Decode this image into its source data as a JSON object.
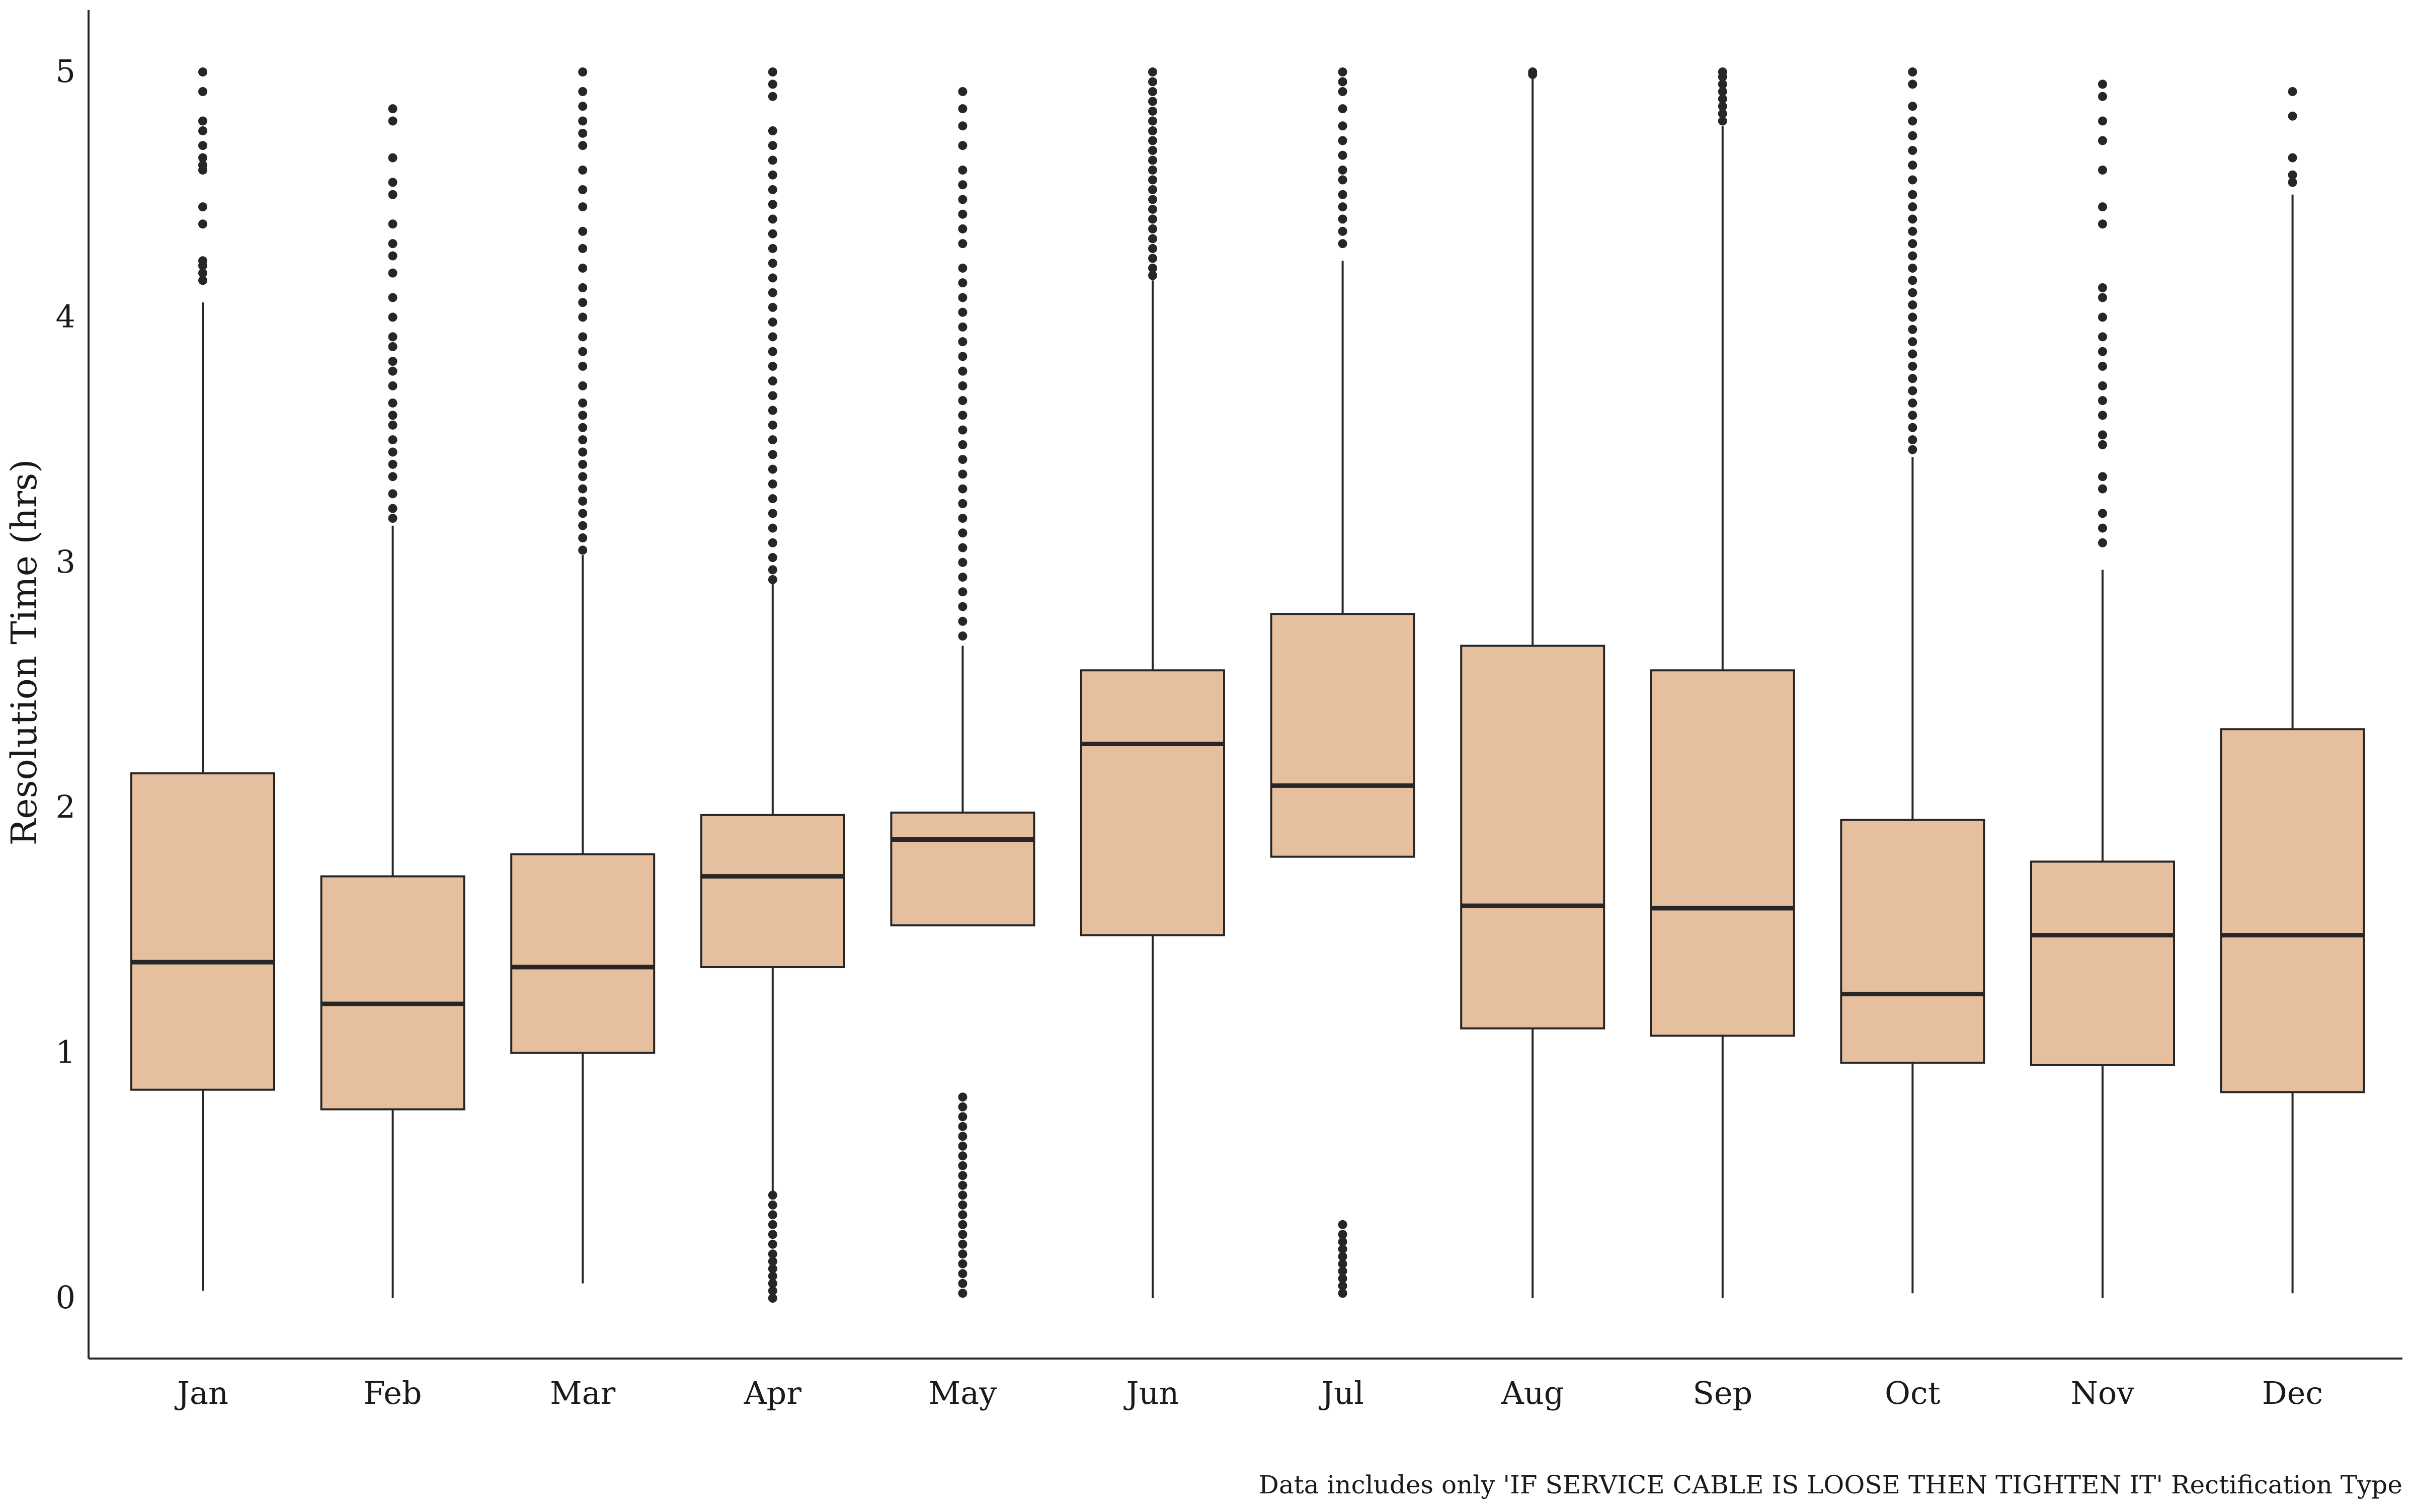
{
  "chart_data": {
    "type": "box",
    "ylabel": "Resolution Time (hrs)",
    "xlabel": "",
    "ylim": [
      -0.25,
      5.25
    ],
    "yticks": [
      0,
      1,
      2,
      3,
      4,
      5
    ],
    "categories": [
      "Jan",
      "Feb",
      "Mar",
      "Apr",
      "May",
      "Jun",
      "Jul",
      "Aug",
      "Sep",
      "Oct",
      "Nov",
      "Dec"
    ],
    "grid": false,
    "box_color": "#E6BF9E",
    "line_color": "#262626",
    "caption": "Data includes only 'IF SERVICE CABLE IS LOOSE THEN TIGHTEN IT' Rectification Type",
    "boxes": [
      {
        "category": "Jan",
        "whisker_low": 0.03,
        "q1": 0.85,
        "median": 1.37,
        "q3": 2.14,
        "whisker_high": 4.06,
        "outliers": [
          4.15,
          4.18,
          4.21,
          4.23,
          4.38,
          4.45,
          4.6,
          4.62,
          4.65,
          4.7,
          4.76,
          4.8,
          4.92,
          5.0
        ]
      },
      {
        "category": "Feb",
        "whisker_low": 0.0,
        "q1": 0.77,
        "median": 1.2,
        "q3": 1.72,
        "whisker_high": 3.15,
        "outliers": [
          3.18,
          3.22,
          3.28,
          3.35,
          3.4,
          3.45,
          3.5,
          3.56,
          3.6,
          3.65,
          3.72,
          3.78,
          3.82,
          3.88,
          3.92,
          4.0,
          4.08,
          4.18,
          4.25,
          4.3,
          4.38,
          4.5,
          4.55,
          4.65,
          4.8,
          4.85
        ]
      },
      {
        "category": "Mar",
        "whisker_low": 0.06,
        "q1": 1.0,
        "median": 1.35,
        "q3": 1.81,
        "whisker_high": 3.03,
        "outliers": [
          3.05,
          3.1,
          3.15,
          3.2,
          3.25,
          3.3,
          3.35,
          3.4,
          3.45,
          3.5,
          3.55,
          3.6,
          3.65,
          3.72,
          3.8,
          3.86,
          3.92,
          4.0,
          4.06,
          4.12,
          4.2,
          4.28,
          4.35,
          4.45,
          4.52,
          4.6,
          4.7,
          4.75,
          4.8,
          4.86,
          4.92,
          5.0
        ]
      },
      {
        "category": "Apr",
        "whisker_low": 1.35,
        "q1": 1.35,
        "median": 1.72,
        "q3": 1.97,
        "whisker_high": 2.92,
        "whisker_low_value": 0.42,
        "outliers_low": [
          0.0,
          0.03,
          0.06,
          0.09,
          0.12,
          0.15,
          0.18,
          0.22,
          0.26,
          0.3,
          0.34,
          0.38,
          0.42
        ],
        "outliers": [
          2.93,
          2.97,
          3.02,
          3.08,
          3.14,
          3.2,
          3.26,
          3.32,
          3.38,
          3.44,
          3.5,
          3.56,
          3.62,
          3.68,
          3.74,
          3.8,
          3.86,
          3.92,
          3.98,
          4.04,
          4.1,
          4.16,
          4.22,
          4.28,
          4.34,
          4.4,
          4.46,
          4.52,
          4.58,
          4.64,
          4.7,
          4.76,
          4.9,
          4.95,
          5.0
        ]
      },
      {
        "category": "May",
        "whisker_low": 1.52,
        "q1": 1.52,
        "median": 1.87,
        "q3": 1.98,
        "whisker_high": 2.66,
        "outliers_low": [
          0.02,
          0.06,
          0.1,
          0.14,
          0.18,
          0.22,
          0.26,
          0.3,
          0.34,
          0.38,
          0.42,
          0.46,
          0.5,
          0.54,
          0.58,
          0.62,
          0.66,
          0.7,
          0.74,
          0.78,
          0.82
        ],
        "outliers": [
          2.7,
          2.76,
          2.82,
          2.88,
          2.94,
          3.0,
          3.06,
          3.12,
          3.18,
          3.24,
          3.3,
          3.36,
          3.42,
          3.48,
          3.54,
          3.6,
          3.66,
          3.72,
          3.78,
          3.84,
          3.9,
          3.96,
          4.02,
          4.08,
          4.14,
          4.2,
          4.3,
          4.36,
          4.42,
          4.48,
          4.54,
          4.6,
          4.7,
          4.78,
          4.85,
          4.92
        ]
      },
      {
        "category": "Jun",
        "whisker_low": 0.0,
        "q1": 1.48,
        "median": 2.26,
        "q3": 2.56,
        "whisker_high": 4.15,
        "outliers": [
          4.17,
          4.2,
          4.24,
          4.28,
          4.32,
          4.36,
          4.4,
          4.44,
          4.48,
          4.52,
          4.56,
          4.6,
          4.64,
          4.68,
          4.72,
          4.76,
          4.8,
          4.84,
          4.88,
          4.92,
          4.96,
          5.0
        ]
      },
      {
        "category": "Jul",
        "whisker_low": 1.8,
        "q1": 1.8,
        "median": 2.09,
        "q3": 2.79,
        "whisker_high": 4.23,
        "outliers_low": [
          0.02,
          0.05,
          0.08,
          0.11,
          0.14,
          0.17,
          0.2,
          0.23,
          0.26,
          0.3
        ],
        "outliers": [
          4.3,
          4.35,
          4.4,
          4.45,
          4.5,
          4.56,
          4.6,
          4.66,
          4.72,
          4.78,
          4.85,
          4.92,
          4.96,
          5.0
        ]
      },
      {
        "category": "Aug",
        "whisker_low": 0.0,
        "q1": 1.1,
        "median": 1.6,
        "q3": 2.66,
        "whisker_high": 4.98,
        "outliers": [
          4.99,
          5.0
        ]
      },
      {
        "category": "Sep",
        "whisker_low": 0.0,
        "q1": 1.07,
        "median": 1.59,
        "q3": 2.56,
        "whisker_high": 4.78,
        "outliers": [
          4.8,
          4.83,
          4.86,
          4.89,
          4.92,
          4.95,
          4.98,
          5.0
        ]
      },
      {
        "category": "Oct",
        "whisker_low": 0.02,
        "q1": 0.96,
        "median": 1.24,
        "q3": 1.95,
        "whisker_high": 3.43,
        "outliers": [
          3.46,
          3.5,
          3.55,
          3.6,
          3.65,
          3.7,
          3.75,
          3.8,
          3.85,
          3.9,
          3.95,
          4.0,
          4.05,
          4.1,
          4.15,
          4.2,
          4.25,
          4.3,
          4.35,
          4.4,
          4.45,
          4.5,
          4.56,
          4.62,
          4.68,
          4.74,
          4.8,
          4.86,
          4.95,
          5.0
        ]
      },
      {
        "category": "Nov",
        "whisker_low": 0.0,
        "q1": 0.95,
        "median": 1.48,
        "q3": 1.78,
        "whisker_high": 2.97,
        "outliers": [
          3.08,
          3.14,
          3.2,
          3.3,
          3.35,
          3.48,
          3.52,
          3.6,
          3.66,
          3.72,
          3.8,
          3.86,
          3.92,
          4.0,
          4.08,
          4.12,
          4.38,
          4.45,
          4.6,
          4.72,
          4.8,
          4.9,
          4.95
        ]
      },
      {
        "category": "Dec",
        "whisker_low": 0.02,
        "q1": 0.84,
        "median": 1.48,
        "q3": 2.32,
        "whisker_high": 4.5,
        "outliers": [
          4.55,
          4.58,
          4.65,
          4.82,
          4.92
        ]
      }
    ]
  }
}
